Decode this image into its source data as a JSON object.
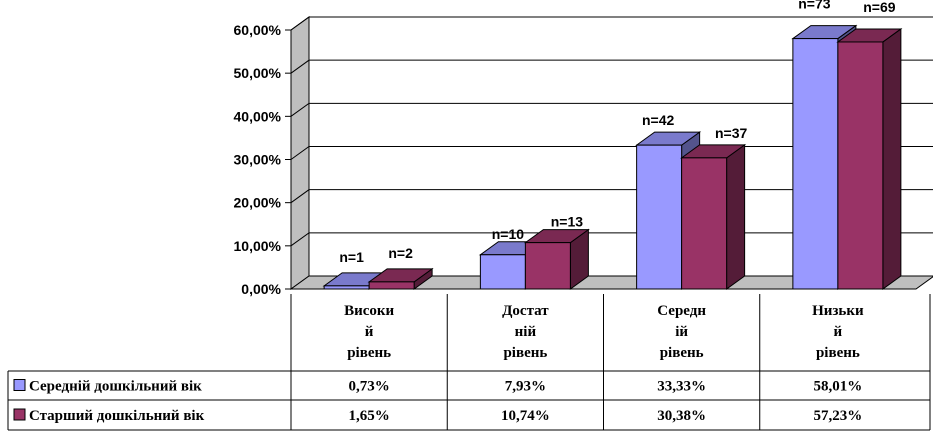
{
  "chart_data": {
    "type": "bar",
    "categories": [
      [
        "Високи",
        "й",
        "рівень"
      ],
      [
        "Достат",
        "ній",
        "рівень"
      ],
      [
        "Середн",
        "ій",
        "рівень"
      ],
      [
        "Низьки",
        "й",
        "рівень"
      ]
    ],
    "series": [
      {
        "name": "Середній дошкільний вік",
        "color": "#9999FF",
        "values": [
          0.73,
          7.93,
          33.33,
          58.01
        ],
        "table_values": [
          "0,73%",
          "7,93%",
          "33,33%",
          "58,01%"
        ],
        "n_labels": [
          "n=1",
          "n=10",
          "n=42",
          "n=73"
        ]
      },
      {
        "name": "Старший дошкільний вік",
        "color": "#993366",
        "values": [
          1.65,
          10.74,
          30.38,
          57.23
        ],
        "table_values": [
          "1,65%",
          "10,74%",
          "30,38%",
          "57,23%"
        ],
        "n_labels": [
          "n=2",
          "n=13",
          "n=37",
          "n=69"
        ]
      }
    ],
    "yticks": [
      "0,00%",
      "10,00%",
      "20,00%",
      "30,00%",
      "40,00%",
      "50,00%",
      "60,00%"
    ],
    "ylim": [
      0,
      60
    ],
    "grid": true,
    "legend": "data-table"
  }
}
